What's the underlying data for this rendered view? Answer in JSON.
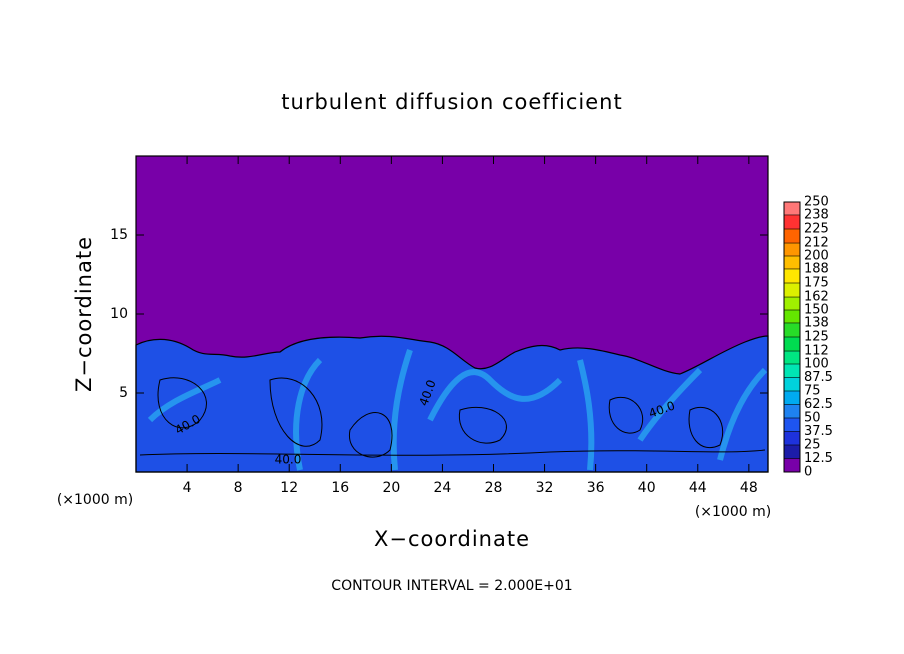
{
  "chart_data": {
    "type": "contour",
    "title": "turbulent diffusion coefficient",
    "xlabel": "X−coordinate",
    "ylabel": "Z−coordinate",
    "x_unit": "(×1000 m)",
    "y_unit": "(×1000 m)",
    "footnote": "CONTOUR INTERVAL = 2.000E+01",
    "xlim": [
      0,
      49.5
    ],
    "xticks": [
      4,
      8,
      12,
      16,
      20,
      24,
      28,
      32,
      36,
      40,
      44,
      48
    ],
    "ylim": [
      0,
      20
    ],
    "yticks": [
      5,
      10,
      15
    ],
    "contour_labels": [
      "40.0",
      "40.0",
      "40.0",
      "40.0"
    ],
    "colorbar": {
      "levels": [
        0,
        12.5,
        25,
        37.5,
        50,
        62.5,
        75,
        87.5,
        100,
        112,
        125,
        138,
        150,
        162,
        175,
        188,
        200,
        212,
        225,
        238,
        250
      ],
      "colors": [
        "#7800a8",
        "#1c1ca8",
        "#1e32dc",
        "#1e55f0",
        "#1e82f0",
        "#00aaf0",
        "#00d2dc",
        "#00e6b4",
        "#00e682",
        "#00dc50",
        "#28dc28",
        "#64e600",
        "#a0f000",
        "#dcf000",
        "#ffe600",
        "#ffbe00",
        "#ff9600",
        "#ff6400",
        "#ff3232",
        "#ff7878"
      ]
    }
  }
}
